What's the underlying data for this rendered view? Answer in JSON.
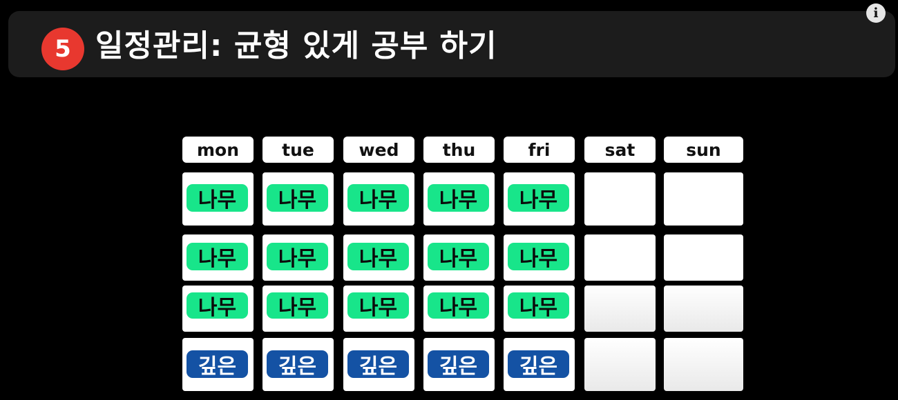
{
  "header": {
    "step_number": "5",
    "title": "일정관리: 균형 있게 공부 하기",
    "info_label": "i"
  },
  "schedule": {
    "days": [
      "mon",
      "tue",
      "wed",
      "thu",
      "fri",
      "sat",
      "sun"
    ],
    "rows": [
      [
        "나무",
        "나무",
        "나무",
        "나무",
        "나무",
        "",
        ""
      ],
      [
        "나무",
        "나무",
        "나무",
        "나무",
        "나무",
        "",
        ""
      ],
      [
        "나무",
        "나무",
        "나무",
        "나무",
        "나무",
        "",
        ""
      ],
      [
        "깊은",
        "깊은",
        "깊은",
        "깊은",
        "깊은",
        "",
        ""
      ]
    ],
    "tag_kinds": {
      "나무": "tree",
      "깊은": "deep"
    }
  },
  "colors": {
    "tree_tag": "#18e58a",
    "deep_tag": "#1452a4",
    "step_badge": "#e8382f",
    "title_bar": "#1c1c1c"
  }
}
